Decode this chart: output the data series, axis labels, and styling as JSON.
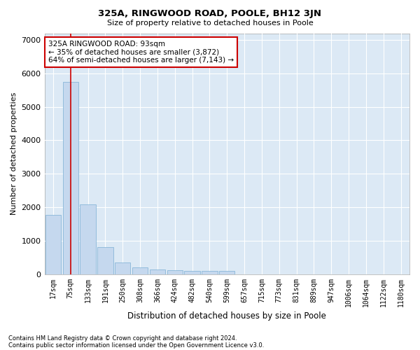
{
  "title": "325A, RINGWOOD ROAD, POOLE, BH12 3JN",
  "subtitle": "Size of property relative to detached houses in Poole",
  "xlabel": "Distribution of detached houses by size in Poole",
  "ylabel": "Number of detached properties",
  "footer_line1": "Contains HM Land Registry data © Crown copyright and database right 2024.",
  "footer_line2": "Contains public sector information licensed under the Open Government Licence v3.0.",
  "bar_color": "#c5d8ee",
  "bar_edge_color": "#7bafd4",
  "vline_color": "#cc0000",
  "vline_x": 1,
  "annotation_text": "325A RINGWOOD ROAD: 93sqm\n← 35% of detached houses are smaller (3,872)\n64% of semi-detached houses are larger (7,143) →",
  "annotation_box_edgecolor": "#cc0000",
  "annotation_facecolor": "#ffffff",
  "categories": [
    "17sqm",
    "75sqm",
    "133sqm",
    "191sqm",
    "250sqm",
    "308sqm",
    "366sqm",
    "424sqm",
    "482sqm",
    "540sqm",
    "599sqm",
    "657sqm",
    "715sqm",
    "773sqm",
    "831sqm",
    "889sqm",
    "947sqm",
    "1006sqm",
    "1064sqm",
    "1122sqm",
    "1180sqm"
  ],
  "values": [
    1780,
    5750,
    2080,
    800,
    350,
    200,
    140,
    115,
    100,
    100,
    90,
    0,
    0,
    0,
    0,
    0,
    0,
    0,
    0,
    0,
    0
  ],
  "ylim": [
    0,
    7200
  ],
  "yticks": [
    0,
    1000,
    2000,
    3000,
    4000,
    5000,
    6000,
    7000
  ],
  "bg_color": "#dce9f5",
  "fig_bg_color": "#ffffff",
  "grid_color": "#ffffff",
  "figsize": [
    6.0,
    5.0
  ],
  "dpi": 100
}
